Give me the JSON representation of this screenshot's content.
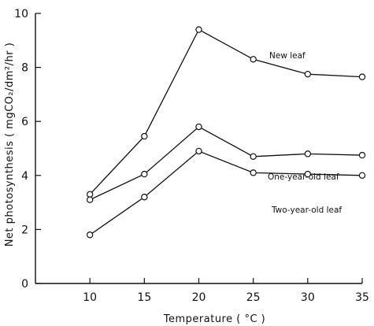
{
  "chart_data": {
    "type": "line",
    "title": "",
    "xlabel": "Temperature ( °C )",
    "ylabel": "Net photosynthesis ( mgCO₂/dm²/hr )",
    "x": [
      10,
      15,
      20,
      25,
      30,
      35
    ],
    "xlim": [
      5,
      35
    ],
    "ylim": [
      0,
      10
    ],
    "xticks": [
      10,
      15,
      20,
      25,
      30,
      35
    ],
    "yticks": [
      0,
      2,
      4,
      6,
      8,
      10
    ],
    "grid": false,
    "legend": "none",
    "series": [
      {
        "name": "New leaf",
        "values": [
          3.3,
          5.45,
          9.4,
          8.3,
          7.75,
          7.65
        ]
      },
      {
        "name": "One-year-old leaf",
        "values": [
          3.1,
          4.05,
          5.8,
          4.7,
          4.8,
          4.75
        ]
      },
      {
        "name": "Two-year-old leaf",
        "values": [
          1.8,
          3.2,
          4.9,
          4.1,
          4.05,
          4.0
        ]
      }
    ]
  }
}
